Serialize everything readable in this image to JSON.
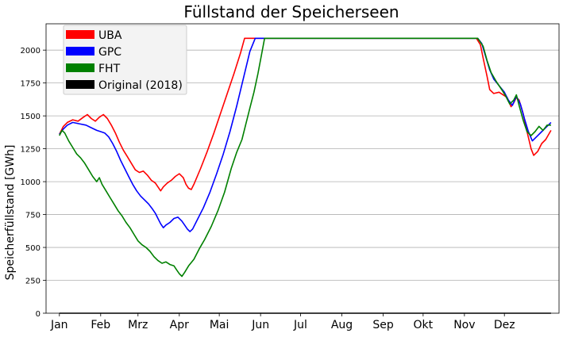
{
  "chart_data": {
    "type": "line",
    "title": "Füllstand der Speicherseen",
    "xlabel": "",
    "ylabel": "Speicherfüllstand [GWh]",
    "xlim": [
      -10,
      375
    ],
    "ylim": [
      0,
      2200
    ],
    "grid": "y",
    "legend_position": "top-left",
    "x_ticks": [
      {
        "label": "Jan",
        "day": 0
      },
      {
        "label": "Feb",
        "day": 31
      },
      {
        "label": "Mrz",
        "day": 59
      },
      {
        "label": "Apr",
        "day": 90
      },
      {
        "label": "Mai",
        "day": 120
      },
      {
        "label": "Jun",
        "day": 151
      },
      {
        "label": "Jul",
        "day": 181
      },
      {
        "label": "Aug",
        "day": 212
      },
      {
        "label": "Sep",
        "day": 243
      },
      {
        "label": "Okt",
        "day": 273
      },
      {
        "label": "Nov",
        "day": 304
      },
      {
        "label": "Dez",
        "day": 334
      }
    ],
    "y_ticks": [
      0,
      250,
      500,
      750,
      1000,
      1250,
      1500,
      1750,
      2000
    ],
    "series": [
      {
        "name": "UBA",
        "color": "#ff0000",
        "points": [
          [
            0,
            1360
          ],
          [
            3,
            1420
          ],
          [
            6,
            1450
          ],
          [
            10,
            1470
          ],
          [
            14,
            1460
          ],
          [
            18,
            1490
          ],
          [
            21,
            1510
          ],
          [
            24,
            1480
          ],
          [
            27,
            1460
          ],
          [
            30,
            1490
          ],
          [
            33,
            1510
          ],
          [
            36,
            1480
          ],
          [
            39,
            1430
          ],
          [
            42,
            1370
          ],
          [
            45,
            1300
          ],
          [
            48,
            1240
          ],
          [
            51,
            1190
          ],
          [
            54,
            1140
          ],
          [
            57,
            1090
          ],
          [
            60,
            1070
          ],
          [
            63,
            1080
          ],
          [
            66,
            1050
          ],
          [
            69,
            1010
          ],
          [
            72,
            990
          ],
          [
            74,
            960
          ],
          [
            76,
            930
          ],
          [
            78,
            960
          ],
          [
            81,
            990
          ],
          [
            84,
            1010
          ],
          [
            87,
            1040
          ],
          [
            90,
            1060
          ],
          [
            93,
            1030
          ],
          [
            95,
            980
          ],
          [
            97,
            950
          ],
          [
            99,
            940
          ],
          [
            101,
            980
          ],
          [
            106,
            1100
          ],
          [
            111,
            1230
          ],
          [
            116,
            1370
          ],
          [
            121,
            1520
          ],
          [
            126,
            1670
          ],
          [
            131,
            1820
          ],
          [
            136,
            1980
          ],
          [
            139,
            2090
          ],
          [
            300,
            2090
          ],
          [
            313,
            2090
          ],
          [
            316,
            2040
          ],
          [
            318,
            1940
          ],
          [
            321,
            1800
          ],
          [
            323,
            1700
          ],
          [
            326,
            1670
          ],
          [
            330,
            1680
          ],
          [
            333,
            1660
          ],
          [
            336,
            1640
          ],
          [
            339,
            1570
          ],
          [
            341,
            1600
          ],
          [
            343,
            1640
          ],
          [
            345,
            1620
          ],
          [
            348,
            1520
          ],
          [
            351,
            1380
          ],
          [
            354,
            1250
          ],
          [
            356,
            1200
          ],
          [
            359,
            1230
          ],
          [
            362,
            1290
          ],
          [
            365,
            1320
          ],
          [
            369,
            1390
          ]
        ]
      },
      {
        "name": "GPC",
        "color": "#0000ff",
        "points": [
          [
            0,
            1360
          ],
          [
            3,
            1400
          ],
          [
            6,
            1430
          ],
          [
            10,
            1450
          ],
          [
            15,
            1440
          ],
          [
            20,
            1430
          ],
          [
            24,
            1410
          ],
          [
            28,
            1390
          ],
          [
            31,
            1380
          ],
          [
            34,
            1370
          ],
          [
            37,
            1340
          ],
          [
            40,
            1290
          ],
          [
            43,
            1230
          ],
          [
            46,
            1160
          ],
          [
            49,
            1100
          ],
          [
            52,
            1040
          ],
          [
            55,
            980
          ],
          [
            58,
            930
          ],
          [
            61,
            890
          ],
          [
            64,
            860
          ],
          [
            67,
            830
          ],
          [
            70,
            790
          ],
          [
            72,
            760
          ],
          [
            74,
            720
          ],
          [
            76,
            680
          ],
          [
            78,
            650
          ],
          [
            80,
            670
          ],
          [
            83,
            690
          ],
          [
            86,
            720
          ],
          [
            89,
            730
          ],
          [
            92,
            700
          ],
          [
            94,
            670
          ],
          [
            96,
            640
          ],
          [
            98,
            620
          ],
          [
            100,
            640
          ],
          [
            103,
            700
          ],
          [
            108,
            800
          ],
          [
            113,
            920
          ],
          [
            118,
            1060
          ],
          [
            123,
            1210
          ],
          [
            128,
            1380
          ],
          [
            133,
            1570
          ],
          [
            138,
            1780
          ],
          [
            143,
            1990
          ],
          [
            147,
            2090
          ],
          [
            300,
            2090
          ],
          [
            314,
            2090
          ],
          [
            317,
            2050
          ],
          [
            320,
            1950
          ],
          [
            323,
            1850
          ],
          [
            326,
            1780
          ],
          [
            330,
            1730
          ],
          [
            334,
            1680
          ],
          [
            337,
            1620
          ],
          [
            340,
            1580
          ],
          [
            343,
            1650
          ],
          [
            346,
            1590
          ],
          [
            349,
            1480
          ],
          [
            352,
            1380
          ],
          [
            355,
            1310
          ],
          [
            358,
            1340
          ],
          [
            362,
            1380
          ],
          [
            365,
            1410
          ],
          [
            369,
            1450
          ]
        ]
      },
      {
        "name": "FHT",
        "color": "#008000",
        "points": [
          [
            0,
            1350
          ],
          [
            2,
            1390
          ],
          [
            4,
            1370
          ],
          [
            7,
            1310
          ],
          [
            10,
            1260
          ],
          [
            13,
            1210
          ],
          [
            16,
            1180
          ],
          [
            19,
            1140
          ],
          [
            22,
            1090
          ],
          [
            25,
            1040
          ],
          [
            28,
            1000
          ],
          [
            30,
            1030
          ],
          [
            32,
            980
          ],
          [
            35,
            930
          ],
          [
            38,
            880
          ],
          [
            41,
            830
          ],
          [
            44,
            780
          ],
          [
            47,
            740
          ],
          [
            50,
            690
          ],
          [
            53,
            650
          ],
          [
            56,
            600
          ],
          [
            59,
            550
          ],
          [
            62,
            520
          ],
          [
            65,
            500
          ],
          [
            68,
            470
          ],
          [
            71,
            430
          ],
          [
            74,
            400
          ],
          [
            77,
            380
          ],
          [
            80,
            390
          ],
          [
            83,
            370
          ],
          [
            86,
            360
          ],
          [
            88,
            330
          ],
          [
            90,
            300
          ],
          [
            92,
            280
          ],
          [
            94,
            310
          ],
          [
            97,
            360
          ],
          [
            101,
            410
          ],
          [
            105,
            490
          ],
          [
            109,
            560
          ],
          [
            114,
            660
          ],
          [
            119,
            780
          ],
          [
            124,
            920
          ],
          [
            129,
            1100
          ],
          [
            133,
            1220
          ],
          [
            137,
            1320
          ],
          [
            140,
            1440
          ],
          [
            143,
            1560
          ],
          [
            146,
            1680
          ],
          [
            149,
            1820
          ],
          [
            152,
            1980
          ],
          [
            154,
            2090
          ],
          [
            300,
            2090
          ],
          [
            314,
            2090
          ],
          [
            318,
            2030
          ],
          [
            321,
            1920
          ],
          [
            324,
            1830
          ],
          [
            328,
            1760
          ],
          [
            332,
            1700
          ],
          [
            335,
            1650
          ],
          [
            338,
            1590
          ],
          [
            341,
            1620
          ],
          [
            343,
            1660
          ],
          [
            345,
            1580
          ],
          [
            348,
            1470
          ],
          [
            351,
            1380
          ],
          [
            354,
            1350
          ],
          [
            357,
            1380
          ],
          [
            360,
            1420
          ],
          [
            363,
            1390
          ],
          [
            366,
            1430
          ],
          [
            369,
            1430
          ]
        ]
      },
      {
        "name": "Original (2018)",
        "color": "#000000",
        "points": [
          [
            0,
            0
          ],
          [
            369,
            0
          ]
        ]
      }
    ]
  }
}
